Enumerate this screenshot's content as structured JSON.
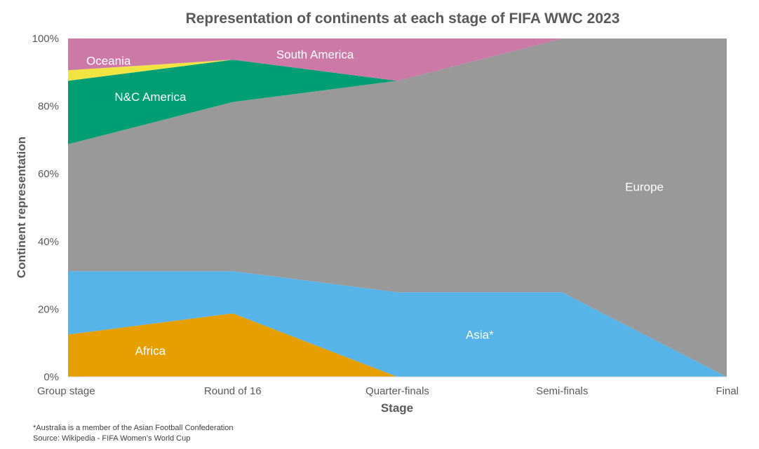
{
  "chart_data": {
    "type": "area",
    "stacked": true,
    "title": "Representation of continents at each stage of FIFA WWC 2023",
    "xlabel": "Stage",
    "ylabel": "Continent representation",
    "categories": [
      "Group stage",
      "Round of 16",
      "Quarter-finals",
      "Semi-finals",
      "Final"
    ],
    "y_ticks": [
      "0%",
      "20%",
      "40%",
      "60%",
      "80%",
      "100%"
    ],
    "ylim": [
      0,
      100
    ],
    "grid": false,
    "legend": "none (series labelled inside areas)",
    "series": [
      {
        "name": "Africa",
        "color": "#E5A000",
        "values": [
          12.5,
          18.75,
          0,
          0,
          0
        ]
      },
      {
        "name": "Asia*",
        "color": "#56B4E9",
        "values": [
          18.75,
          12.5,
          25,
          25,
          0
        ]
      },
      {
        "name": "Europe",
        "color": "#999999",
        "values": [
          37.5,
          50,
          62.5,
          75,
          100
        ]
      },
      {
        "name": "N&C America",
        "color": "#009E73",
        "values": [
          18.75,
          12.5,
          0,
          0,
          0
        ]
      },
      {
        "name": "Oceania",
        "color": "#F0E442",
        "values": [
          3.125,
          0,
          0,
          0,
          0
        ]
      },
      {
        "name": "South America",
        "color": "#CC79A7",
        "values": [
          9.375,
          6.25,
          12.5,
          0,
          0
        ]
      }
    ]
  },
  "footnote": "*Australia is a member of the Asian Football Confederation",
  "source": "Source: Wikipedia - FIFA  Women’s World Cup"
}
